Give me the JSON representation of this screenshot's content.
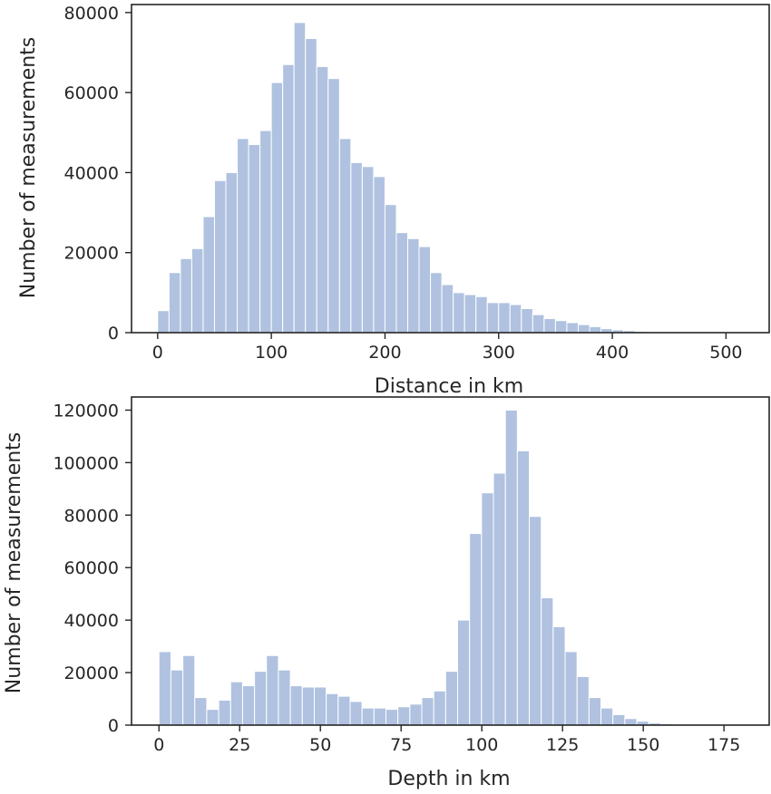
{
  "colors": {
    "bar": "#b0c2e0",
    "axis": "#262626",
    "background": "#ffffff"
  },
  "chart_data": [
    {
      "type": "bar",
      "subtype": "histogram",
      "title": "",
      "xlabel": "Distance in km",
      "ylabel": "Number of measurements",
      "xlim": [
        -23,
        538
      ],
      "ylim": [
        0,
        82000
      ],
      "bin_width": 10,
      "bin_starts": [
        0,
        10,
        20,
        30,
        40,
        50,
        60,
        70,
        80,
        90,
        100,
        110,
        120,
        130,
        140,
        150,
        160,
        170,
        180,
        190,
        200,
        210,
        220,
        230,
        240,
        250,
        260,
        270,
        280,
        290,
        300,
        310,
        320,
        330,
        340,
        350,
        360,
        370,
        380,
        390,
        400,
        410,
        420,
        430,
        440,
        450,
        460,
        470,
        480,
        490,
        500
      ],
      "values": [
        5500,
        15000,
        18500,
        21000,
        29000,
        38000,
        40000,
        48500,
        47000,
        50500,
        62500,
        67000,
        77500,
        73500,
        66500,
        63500,
        48500,
        42500,
        41500,
        39000,
        32000,
        25000,
        23500,
        21500,
        15000,
        12000,
        10000,
        9500,
        9000,
        7500,
        7500,
        7000,
        6000,
        4500,
        3500,
        3000,
        2500,
        2000,
        1500,
        1000,
        700,
        500,
        300,
        200,
        150,
        100,
        80,
        60,
        50,
        40,
        30
      ],
      "xticks": [
        0,
        100,
        200,
        300,
        400,
        500
      ],
      "yticks": [
        0,
        20000,
        40000,
        60000,
        80000
      ],
      "grid": false,
      "legend": "none"
    },
    {
      "type": "bar",
      "subtype": "histogram",
      "title": "",
      "xlabel": "Depth in km",
      "ylabel": "Number of measurements",
      "xlim": [
        -8.5,
        189
      ],
      "ylim": [
        0,
        125000
      ],
      "bin_width": 3.7,
      "bin_starts": [
        0,
        3.7,
        7.4,
        11.1,
        14.8,
        18.5,
        22.2,
        25.9,
        29.6,
        33.3,
        37,
        40.7,
        44.4,
        48.1,
        51.8,
        55.5,
        59.2,
        62.9,
        66.6,
        70.3,
        74,
        77.7,
        81.4,
        85.1,
        88.8,
        92.5,
        96.2,
        99.9,
        103.6,
        107.3,
        111,
        114.7,
        118.4,
        122.1,
        125.8,
        129.5,
        133.2,
        136.9,
        140.6,
        144.3,
        148,
        151.7,
        155.4,
        159.1,
        162.8,
        166.5,
        170.2,
        173.9,
        177.6,
        181.3
      ],
      "values": [
        28000,
        21000,
        26500,
        10500,
        6000,
        9500,
        16500,
        15000,
        20500,
        26500,
        21000,
        15000,
        14500,
        14500,
        12000,
        11000,
        9000,
        6500,
        6500,
        6000,
        7000,
        8000,
        10500,
        13000,
        20500,
        40000,
        73000,
        88500,
        96000,
        120000,
        104500,
        79500,
        48500,
        37500,
        28000,
        18500,
        10500,
        6500,
        4000,
        2500,
        1500,
        800,
        500,
        300,
        300,
        200,
        200,
        100,
        100,
        50
      ],
      "xticks": [
        0,
        25,
        50,
        75,
        100,
        125,
        150,
        175
      ],
      "yticks": [
        0,
        20000,
        40000,
        60000,
        80000,
        100000,
        120000
      ],
      "grid": false,
      "legend": "none"
    }
  ]
}
